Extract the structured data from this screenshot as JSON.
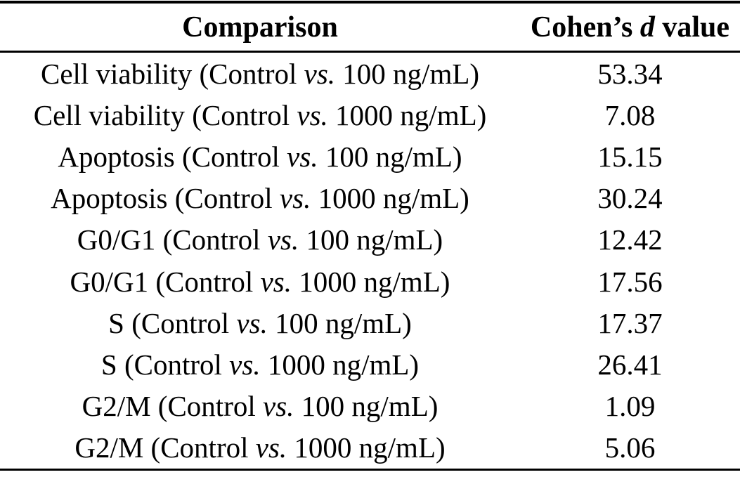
{
  "page": {
    "background_color": "#ffffff",
    "text_color": "#000000",
    "rule_color": "#000000"
  },
  "table": {
    "header": {
      "col1": "Comparison",
      "col2_prefix": "Cohen’s ",
      "col2_italic": "d",
      "col2_suffix": " value"
    },
    "rows": [
      {
        "prefix": "Cell viability (Control ",
        "vs": "vs.",
        "suffix": " 100 ng/mL)",
        "value": "53.34"
      },
      {
        "prefix": "Cell viability (Control ",
        "vs": "vs.",
        "suffix": " 1000 ng/mL)",
        "value": "7.08"
      },
      {
        "prefix": "Apoptosis (Control ",
        "vs": "vs.",
        "suffix": " 100 ng/mL)",
        "value": "15.15"
      },
      {
        "prefix": "Apoptosis (Control ",
        "vs": "vs.",
        "suffix": " 1000 ng/mL)",
        "value": "30.24"
      },
      {
        "prefix": "G0/G1 (Control ",
        "vs": "vs.",
        "suffix": " 100 ng/mL)",
        "value": "12.42"
      },
      {
        "prefix": "G0/G1 (Control ",
        "vs": "vs.",
        "suffix": " 1000 ng/mL)",
        "value": "17.56"
      },
      {
        "prefix": "S (Control ",
        "vs": "vs.",
        "suffix": " 100 ng/mL)",
        "value": "17.37"
      },
      {
        "prefix": "S (Control ",
        "vs": "vs.",
        "suffix": " 1000 ng/mL)",
        "value": "26.41"
      },
      {
        "prefix": "G2/M (Control ",
        "vs": "vs.",
        "suffix": " 100 ng/mL)",
        "value": "1.09"
      },
      {
        "prefix": "G2/M (Control ",
        "vs": "vs.",
        "suffix": " 1000 ng/mL)",
        "value": "5.06"
      }
    ]
  }
}
